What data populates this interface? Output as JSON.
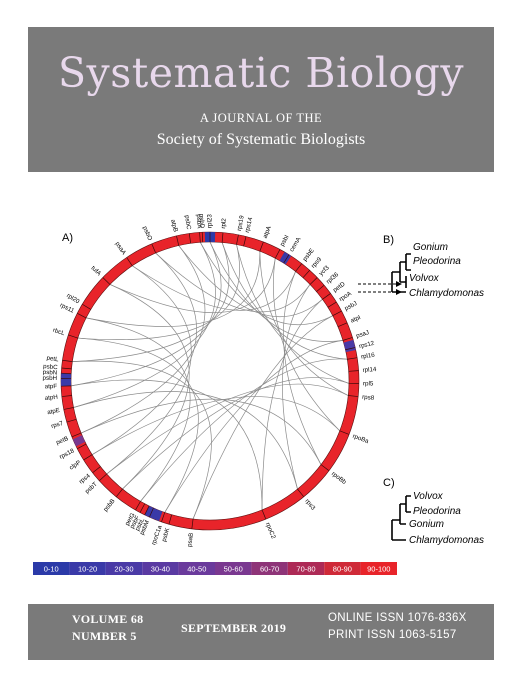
{
  "header": {
    "title": "Systematic Biology",
    "line1": "A JOURNAL OF THE",
    "line2": "Society of Systematic Biologists"
  },
  "panels": {
    "a": "A)",
    "b": "B)",
    "c": "C)"
  },
  "genes": [
    {
      "label": "psbC",
      "angle": -8
    },
    {
      "label": "psbD",
      "angle": -3
    },
    {
      "label": "rpl23",
      "angle": 0
    },
    {
      "label": "rpl2",
      "angle": 5
    },
    {
      "label": "rps19",
      "angle": 11
    },
    {
      "label": "rps14",
      "angle": 14
    },
    {
      "label": "atpA",
      "angle": 21
    },
    {
      "label": "psbI",
      "angle": 28
    },
    {
      "label": "cemA",
      "angle": 32
    },
    {
      "label": "psbE",
      "angle": 38
    },
    {
      "label": "rps9",
      "angle": 42
    },
    {
      "label": "ycf3",
      "angle": 46
    },
    {
      "label": "rpl36",
      "angle": 50
    },
    {
      "label": "petD",
      "angle": 54
    },
    {
      "label": "rpoA",
      "angle": 58
    },
    {
      "label": "psbJ",
      "angle": 62
    },
    {
      "label": "atpI",
      "angle": 67
    },
    {
      "label": "psaJ",
      "angle": 73
    },
    {
      "label": "rps12",
      "angle": 77
    },
    {
      "label": "rpl16",
      "angle": 81
    },
    {
      "label": "rpl14",
      "angle": 86
    },
    {
      "label": "rpl5",
      "angle": 91
    },
    {
      "label": "rps8",
      "angle": 96
    },
    {
      "label": "rpoBa",
      "angle": 111
    },
    {
      "label": "rpoBb",
      "angle": 127
    },
    {
      "label": "rps3",
      "angle": 141
    },
    {
      "label": "rpoC2",
      "angle": 158
    },
    {
      "label": "psaB",
      "angle": 187
    },
    {
      "label": "psbK",
      "angle": 196
    },
    {
      "label": "rpoC1a",
      "angle": 199
    },
    {
      "label": "psbM",
      "angle": 204
    },
    {
      "label": "psbL",
      "angle": 206
    },
    {
      "label": "psbF",
      "angle": 208
    },
    {
      "label": "petG",
      "angle": 210
    },
    {
      "label": "psbB",
      "angle": 219
    },
    {
      "label": "psbT",
      "angle": 228
    },
    {
      "label": "rps4",
      "angle": 232
    },
    {
      "label": "clpP",
      "angle": 238
    },
    {
      "label": "rps18",
      "angle": 243
    },
    {
      "label": "petB",
      "angle": 248
    },
    {
      "label": "rps7",
      "angle": 254
    },
    {
      "label": "atpE",
      "angle": 259
    },
    {
      "label": "atpH",
      "angle": 264
    },
    {
      "label": "atpF",
      "angle": 268
    },
    {
      "label": "psbH",
      "angle": 271
    },
    {
      "label": "psbN",
      "angle": 273
    },
    {
      "label": "psbC",
      "angle": 275
    },
    {
      "label": "petL",
      "angle": 278
    },
    {
      "label": "rbcL",
      "angle": 288
    },
    {
      "label": "rps11",
      "angle": 297
    },
    {
      "label": "rpl20",
      "angle": 301
    },
    {
      "label": "tufA",
      "angle": 314
    },
    {
      "label": "psaA",
      "angle": 326
    },
    {
      "label": "psbO",
      "angle": 337
    },
    {
      "label": "atpB",
      "angle": 347
    },
    {
      "label": "psbA",
      "angle": 356
    }
  ],
  "tree_b": [
    "Gonium",
    "Pleodorina",
    "Volvox",
    "Chlamydomonas"
  ],
  "tree_c": [
    "Volvox",
    "Pleodorina",
    "Gonium",
    "Chlamydomonas"
  ],
  "legend": [
    {
      "label": "0-10",
      "color": "#2b3aa8"
    },
    {
      "label": "10-20",
      "color": "#3a3aa8"
    },
    {
      "label": "20-30",
      "color": "#4a3aa6"
    },
    {
      "label": "30-40",
      "color": "#5a3aa2"
    },
    {
      "label": "40-50",
      "color": "#6a3a9c"
    },
    {
      "label": "50-60",
      "color": "#7a3890"
    },
    {
      "label": "60-70",
      "color": "#8e3478"
    },
    {
      "label": "70-80",
      "color": "#ad2a56"
    },
    {
      "label": "80-90",
      "color": "#cf2a38"
    },
    {
      "label": "90-100",
      "color": "#e8242a"
    }
  ],
  "footer": {
    "volume": "VOLUME 68",
    "number": "NUMBER 5",
    "date": "SEPTEMBER  2019",
    "online": "ONLINE ISSN 1076-836X",
    "print": "PRINT ISSN 1063-5157"
  }
}
